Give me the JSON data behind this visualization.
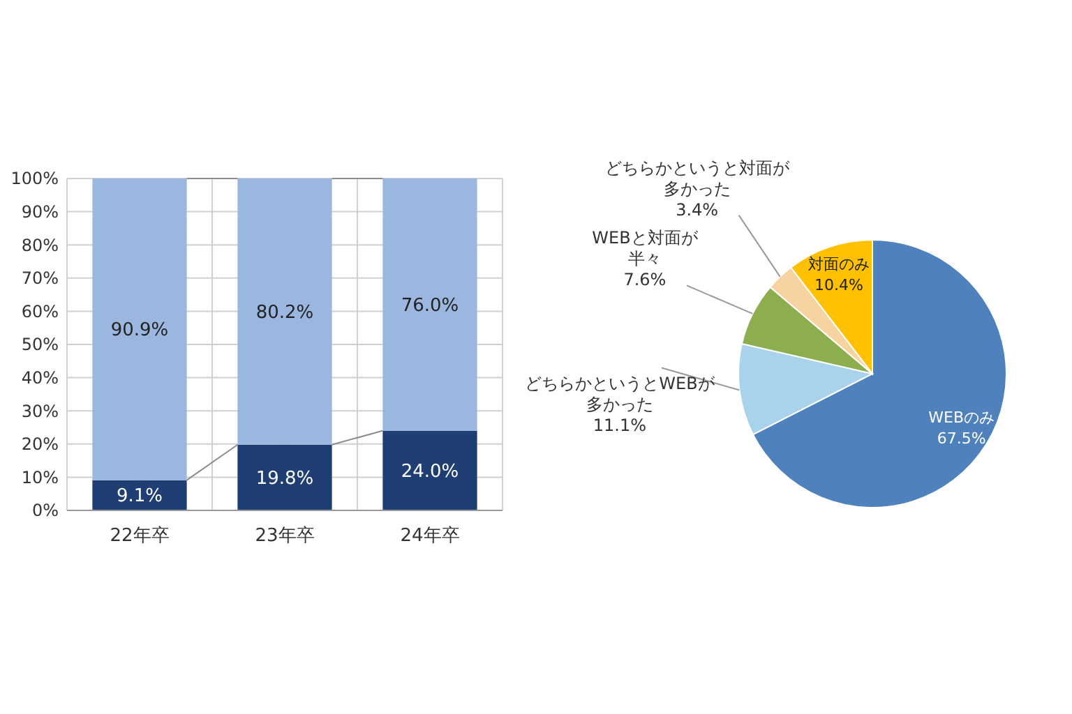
{
  "chart_data": [
    {
      "type": "bar",
      "stacked": true,
      "categories": [
        "22年卒",
        "23年卒",
        "24年卒"
      ],
      "series": [
        {
          "color": "#1f3e73",
          "values": [
            9.1,
            19.8,
            24.0
          ],
          "value_labels": [
            "9.1%",
            "19.8%",
            "24.0%"
          ]
        },
        {
          "color": "#9bb7e0",
          "values": [
            90.9,
            80.2,
            76.0
          ],
          "value_labels": [
            "90.9%",
            "80.2%",
            "76.0%"
          ]
        }
      ],
      "ylim": [
        0,
        100
      ],
      "yticks": [
        {
          "value": 0,
          "label": "0%"
        },
        {
          "value": 10,
          "label": "10%"
        },
        {
          "value": 20,
          "label": "20%"
        },
        {
          "value": 30,
          "label": "30%"
        },
        {
          "value": 40,
          "label": "40%"
        },
        {
          "value": 50,
          "label": "50%"
        },
        {
          "value": 60,
          "label": "60%"
        },
        {
          "value": 70,
          "label": "70%"
        },
        {
          "value": 80,
          "label": "80%"
        },
        {
          "value": 90,
          "label": "90%"
        },
        {
          "value": 100,
          "label": "100%"
        }
      ],
      "grid": true
    },
    {
      "type": "pie",
      "categories": [
        "WEBのみ",
        "どちらかというとWEBが多かった",
        "WEBと対面が半々",
        "どちらかというと対面が多かった",
        "対面のみ"
      ],
      "values": [
        67.5,
        11.1,
        7.6,
        3.4,
        10.4
      ],
      "colors": [
        "#4f81bd",
        "#a9d3ec",
        "#8cae4e",
        "#f6d3a0",
        "#ffc000"
      ],
      "value_labels": [
        "67.5%",
        "11.1%",
        "7.6%",
        "3.4%",
        "10.4%"
      ]
    }
  ]
}
